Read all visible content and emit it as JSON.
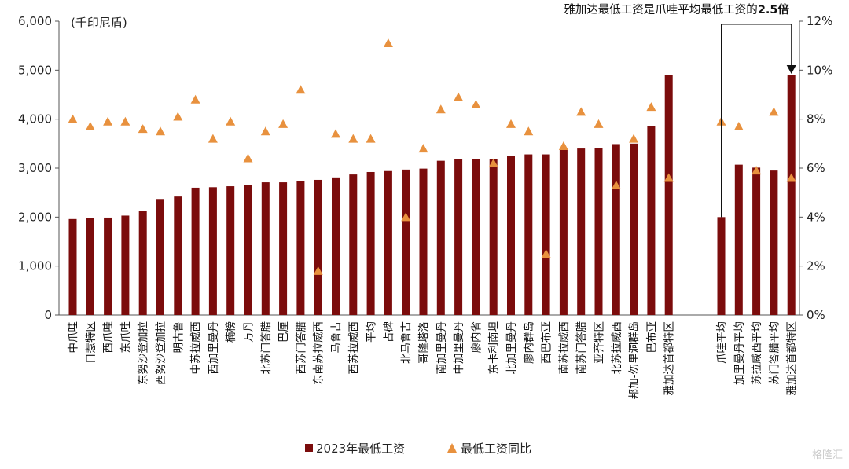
{
  "chart_data": {
    "type": "bar",
    "unit_label": "(千印尼盾)",
    "annotation": {
      "text": "雅加达最低工资是爪哇平均最低工资的",
      "bold": "2.5倍"
    },
    "y_left": {
      "min": 0,
      "max": 6000,
      "ticks": [
        "0",
        "1,000",
        "2,000",
        "3,000",
        "4,000",
        "5,000",
        "6,000"
      ]
    },
    "y_right": {
      "min": 0,
      "max": 12,
      "ticks": [
        "0%",
        "2%",
        "4%",
        "6%",
        "8%",
        "10%",
        "12%"
      ]
    },
    "colors": {
      "bar": "#7b0c0c",
      "marker": "#e8913e",
      "axis": "#555555"
    },
    "legend": {
      "bar_label": "2023年最低工资",
      "marker_label": "最低工资同比"
    },
    "watermark": "格隆汇",
    "groups": [
      {
        "categories": [
          "中爪哇",
          "日惹特区",
          "西爪哇",
          "东爪哇",
          "东努沙登加拉",
          "西努沙登加拉",
          "明古鲁",
          "中苏拉威西",
          "西加里曼丹",
          "楠榜",
          "万丹",
          "北苏门答腊",
          "巴厘",
          "西苏门答腊",
          "东南苏拉威西",
          "马鲁古",
          "西苏拉威西",
          "平均",
          "占碑",
          "北马鲁古",
          "哥隆塔洛",
          "南加里曼丹",
          "中加里曼丹",
          "廖内省",
          "东卡利南坦",
          "北加里曼丹",
          "廖内群岛",
          "西巴布亚",
          "南苏拉威西",
          "南苏门答腊",
          "亚齐特区",
          "北苏拉威西",
          "邦加-勿里洞群岛",
          "巴布亚",
          "雅加达首都特区"
        ],
        "series": [
          {
            "name": "2023年最低工资",
            "values": [
              1960,
              1980,
              1990,
              2030,
              2120,
              2370,
              2420,
              2600,
              2610,
              2630,
              2660,
              2710,
              2710,
              2740,
              2760,
              2810,
              2870,
              2920,
              2940,
              2970,
              2990,
              3150,
              3180,
              3190,
              3190,
              3250,
              3280,
              3280,
              3380,
              3400,
              3410,
              3490,
              3500,
              3860,
              4900
            ]
          },
          {
            "name": "最低工资同比",
            "values": [
              8.0,
              7.7,
              7.9,
              7.9,
              7.6,
              7.5,
              8.1,
              8.8,
              7.2,
              7.9,
              6.4,
              7.5,
              7.8,
              9.2,
              1.8,
              7.4,
              7.2,
              7.2,
              11.1,
              4.0,
              6.8,
              8.4,
              8.9,
              8.6,
              6.2,
              7.8,
              7.5,
              2.5,
              6.9,
              8.3,
              7.8,
              5.3,
              7.2,
              8.5,
              5.6
            ]
          }
        ]
      },
      {
        "categories": [
          "爪哇平均",
          "加里曼丹平均",
          "苏拉威西平均",
          "苏门答腊平均",
          "雅加达首都特区"
        ],
        "series": [
          {
            "name": "2023年最低工资",
            "values": [
              2000,
              3070,
              3010,
              2950,
              4900
            ]
          },
          {
            "name": "最低工资同比",
            "values": [
              7.9,
              7.7,
              5.9,
              8.3,
              5.6
            ]
          }
        ]
      }
    ]
  }
}
